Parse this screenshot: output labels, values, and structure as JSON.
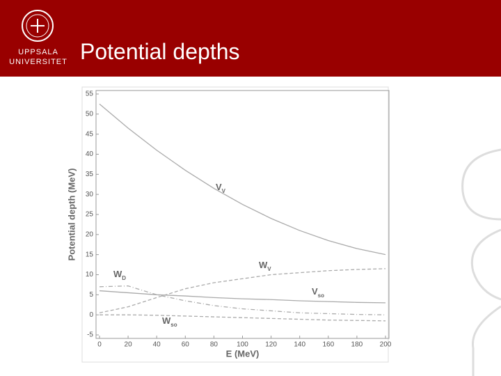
{
  "header": {
    "title": "Potential depths",
    "university_line1": "UPPSALA",
    "university_line2": "UNIVERSITET"
  },
  "chart_data": {
    "type": "line",
    "xlabel": "E (MeV)",
    "ylabel": "Potential depth (MeV)",
    "x": [
      0,
      20,
      40,
      60,
      80,
      100,
      120,
      140,
      160,
      180,
      200
    ],
    "xlim": [
      0,
      200
    ],
    "xticks": [
      0,
      20,
      40,
      60,
      80,
      100,
      120,
      140,
      160,
      180,
      200
    ],
    "ylim": [
      -5,
      55
    ],
    "yticks": [
      -5,
      0,
      5,
      10,
      15,
      20,
      25,
      30,
      35,
      40,
      45,
      50,
      55
    ],
    "series": [
      {
        "name": "V",
        "subscript": "V",
        "color": "#aaaaaa",
        "style": "solid",
        "values": [
          52.5,
          46.5,
          41,
          36,
          31.5,
          27.5,
          24,
          21,
          18.5,
          16.5,
          15
        ]
      },
      {
        "name": "W",
        "subscript": "V",
        "color": "#aaaaaa",
        "style": "dashed",
        "values": [
          0.5,
          2,
          4.3,
          6.5,
          8,
          9,
          10,
          10.5,
          11,
          11.3,
          11.5
        ]
      },
      {
        "name": "W",
        "subscript": "D",
        "color": "#aaaaaa",
        "style": "dashdot",
        "values": [
          7,
          7.2,
          5,
          3.5,
          2.3,
          1.5,
          1,
          0.5,
          0.3,
          0.1,
          0
        ]
      },
      {
        "name": "V",
        "subscript": "so",
        "color": "#aaaaaa",
        "style": "solid",
        "values": [
          6,
          5.5,
          5,
          4.7,
          4.3,
          4,
          3.8,
          3.5,
          3.3,
          3.1,
          3
        ]
      },
      {
        "name": "W",
        "subscript": "so",
        "color": "#aaaaaa",
        "style": "dashed",
        "values": [
          0,
          0,
          -0.1,
          -0.3,
          -0.5,
          -0.7,
          -0.9,
          -1.1,
          -1.3,
          -1.4,
          -1.5
        ]
      }
    ]
  }
}
